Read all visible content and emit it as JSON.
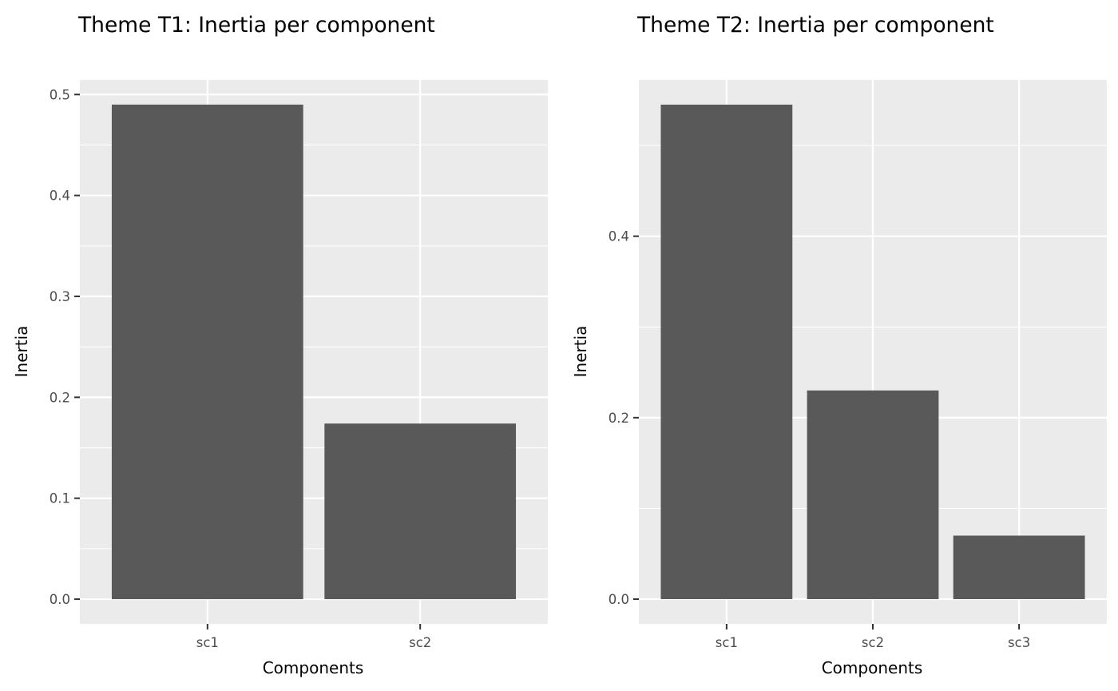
{
  "chart_data": [
    {
      "type": "bar",
      "title": "Theme T1: Inertia per component",
      "xlabel": "Components",
      "ylabel": "Inertia",
      "categories": [
        "sc1",
        "sc2"
      ],
      "values": [
        0.49,
        0.174
      ],
      "ylim": [
        -0.0245,
        0.5145
      ],
      "yticks": [
        0.0,
        0.1,
        0.2,
        0.3,
        0.4,
        0.5
      ],
      "ytick_labels": [
        "0.0",
        "0.1",
        "0.2",
        "0.3",
        "0.4",
        "0.5"
      ],
      "grid": true,
      "legend": "none"
    },
    {
      "type": "bar",
      "title": "Theme T2: Inertia per component",
      "xlabel": "Components",
      "ylabel": "Inertia",
      "categories": [
        "sc1",
        "sc2",
        "sc3"
      ],
      "values": [
        0.545,
        0.23,
        0.07
      ],
      "ylim": [
        -0.0273,
        0.5723
      ],
      "yticks": [
        0.0,
        0.2,
        0.4
      ],
      "ytick_labels": [
        "0.0",
        "0.2",
        "0.4"
      ],
      "grid": true,
      "legend": "none"
    }
  ],
  "colors": {
    "panel_background": "#ebebeb",
    "gridline": "#ffffff",
    "bar_fill": "#595959",
    "tick_mark": "#333333",
    "tick_text": "#4d4d4d",
    "text": "#000000"
  }
}
